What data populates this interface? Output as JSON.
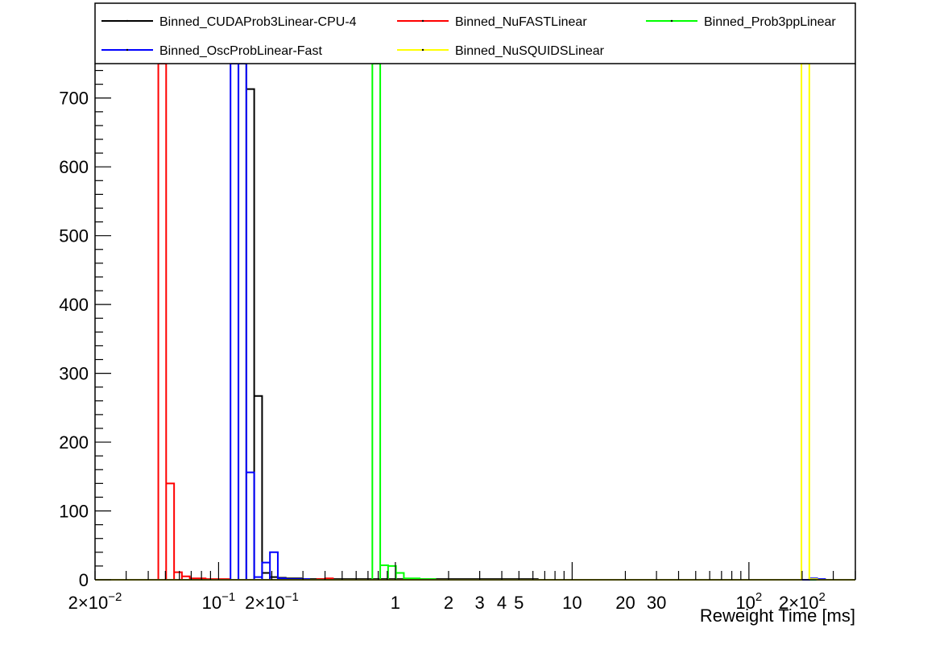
{
  "chart_data": {
    "type": "histogram",
    "title": "",
    "xlabel": "Reweight Time [ms]",
    "ylabel": "",
    "x_scale": "log",
    "xlim": [
      0.02,
      400
    ],
    "ylim": [
      0,
      750
    ],
    "grid": false,
    "legend_position": "top",
    "y_ticks": [
      0,
      100,
      200,
      300,
      400,
      500,
      600,
      700
    ],
    "x_tick_labels": [
      {
        "value": 0.02,
        "base": "2×10",
        "exp": "−2"
      },
      {
        "value": 0.1,
        "base": "10",
        "exp": "−1"
      },
      {
        "value": 0.2,
        "base": "2×10",
        "exp": "−1"
      },
      {
        "value": 1,
        "base": "1",
        "exp": ""
      },
      {
        "value": 2,
        "base": "2",
        "exp": ""
      },
      {
        "value": 3,
        "base": "3",
        "exp": ""
      },
      {
        "value": 4,
        "base": "4",
        "exp": ""
      },
      {
        "value": 5,
        "base": "5",
        "exp": ""
      },
      {
        "value": 10,
        "base": "10",
        "exp": ""
      },
      {
        "value": 20,
        "base": "20",
        "exp": ""
      },
      {
        "value": 30,
        "base": "30",
        "exp": ""
      },
      {
        "value": 100,
        "base": "10",
        "exp": "2"
      },
      {
        "value": 200,
        "base": "2×10",
        "exp": "2"
      }
    ],
    "series": [
      {
        "name": "Binned_CUDAProb3Linear-CPU-4",
        "color": "#000000",
        "bins": [
          [
            0.1295,
            0.1435,
            750
          ],
          [
            0.1435,
            0.159,
            713
          ],
          [
            0.159,
            0.1762,
            267
          ],
          [
            0.1762,
            0.1952,
            10
          ],
          [
            0.1952,
            0.2163,
            4
          ],
          [
            0.2163,
            0.2397,
            3
          ],
          [
            0.2397,
            0.2656,
            2
          ],
          [
            0.2656,
            0.2943,
            2
          ],
          [
            0.2943,
            0.3261,
            1
          ],
          [
            0.3261,
            0.3613,
            1
          ],
          [
            0.3613,
            0.4003,
            1
          ],
          [
            0.4003,
            0.4436,
            1
          ],
          [
            0.4436,
            0.4915,
            1
          ],
          [
            0.4915,
            0.5446,
            1
          ],
          [
            0.5446,
            0.6034,
            1
          ],
          [
            0.6034,
            0.6686,
            1
          ],
          [
            0.6686,
            0.7409,
            1
          ],
          [
            0.7409,
            0.8209,
            1
          ],
          [
            0.8209,
            0.9096,
            1
          ],
          [
            0.9096,
            1.0079,
            1
          ],
          [
            1.0079,
            1.1168,
            1
          ],
          [
            1.1168,
            1.2375,
            1
          ],
          [
            1.2375,
            1.3712,
            1
          ],
          [
            1.3712,
            1.5194,
            1
          ],
          [
            1.5194,
            1.6835,
            1
          ],
          [
            1.6835,
            1.8654,
            1
          ],
          [
            1.8654,
            2.0669,
            1
          ],
          [
            2.0669,
            2.2903,
            1
          ],
          [
            2.2903,
            2.5377,
            1
          ],
          [
            2.5377,
            2.8119,
            1
          ],
          [
            2.8119,
            3.1157,
            1
          ],
          [
            3.1157,
            3.4523,
            1
          ],
          [
            3.4523,
            3.8253,
            1
          ],
          [
            3.8253,
            4.2387,
            1
          ],
          [
            4.2387,
            4.6966,
            1
          ],
          [
            4.6966,
            5.2041,
            1
          ],
          [
            5.2041,
            5.7663,
            1
          ],
          [
            5.7663,
            6.3893,
            1
          ]
        ]
      },
      {
        "name": "Binned_NuFASTLinear",
        "color": "#ff0000",
        "bins": [
          [
            0.0456,
            0.0505,
            750
          ],
          [
            0.0505,
            0.056,
            140
          ],
          [
            0.056,
            0.062,
            11
          ],
          [
            0.062,
            0.0687,
            5
          ],
          [
            0.0687,
            0.0762,
            2
          ],
          [
            0.0762,
            0.0844,
            2
          ],
          [
            0.0844,
            0.0935,
            1
          ],
          [
            0.0935,
            0.1036,
            1
          ],
          [
            0.1036,
            0.1148,
            1
          ],
          [
            0.3613,
            0.4003,
            1
          ],
          [
            0.4003,
            0.4436,
            2
          ]
        ]
      },
      {
        "name": "Binned_Prob3ppLinear",
        "color": "#00ff00",
        "bins": [
          [
            0.7409,
            0.8209,
            750
          ],
          [
            0.8209,
            0.9096,
            21
          ],
          [
            0.9096,
            1.0079,
            20
          ],
          [
            1.0079,
            1.1168,
            10
          ],
          [
            1.1168,
            1.2375,
            2
          ],
          [
            1.2375,
            1.3712,
            2
          ],
          [
            1.3712,
            1.5194,
            1
          ],
          [
            1.5194,
            1.6835,
            1
          ]
        ]
      },
      {
        "name": "Binned_OscProbLinear-Fast",
        "color": "#0000ff",
        "bins": [
          [
            0.1168,
            0.1295,
            750
          ],
          [
            0.1295,
            0.1435,
            750
          ],
          [
            0.1435,
            0.159,
            156
          ],
          [
            0.159,
            0.1762,
            4
          ],
          [
            0.1762,
            0.1952,
            25
          ],
          [
            0.1952,
            0.2163,
            40
          ],
          [
            0.2163,
            0.2397,
            2
          ],
          [
            0.2397,
            0.2656,
            1
          ],
          [
            0.2656,
            0.2943,
            1
          ],
          [
            0.2943,
            0.3261,
            1
          ],
          [
            219.6,
            243.3,
            2
          ],
          [
            243.3,
            269.6,
            1
          ]
        ]
      },
      {
        "name": "Binned_NuSQUIDSLinear",
        "color": "#ffff00",
        "bins": [
          [
            198.2,
            219.6,
            750
          ],
          [
            219.6,
            243.3,
            1
          ]
        ]
      }
    ]
  },
  "legend": {
    "entries": [
      {
        "label": "Binned_CUDAProb3Linear-CPU-4",
        "color": "#000000"
      },
      {
        "label": "Binned_NuFASTLinear",
        "color": "#ff0000"
      },
      {
        "label": "Binned_Prob3ppLinear",
        "color": "#00ff00"
      },
      {
        "label": "Binned_OscProbLinear-Fast",
        "color": "#0000ff"
      },
      {
        "label": "Binned_NuSQUIDSLinear",
        "color": "#ffff00"
      }
    ]
  }
}
